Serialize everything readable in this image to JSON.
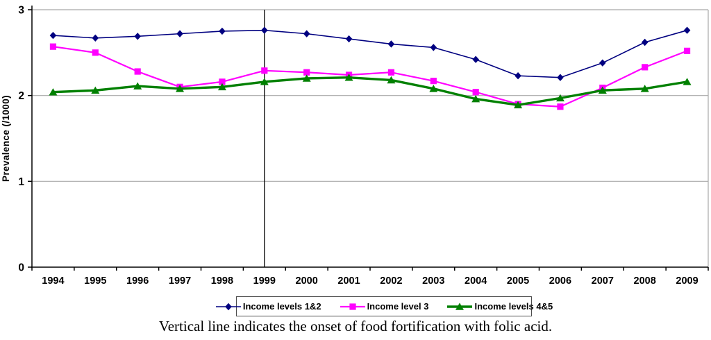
{
  "chart_data": {
    "type": "line",
    "categories": [
      "1994",
      "1995",
      "1996",
      "1997",
      "1998",
      "1999",
      "2000",
      "2001",
      "2002",
      "2003",
      "2004",
      "2005",
      "2006",
      "2007",
      "2008",
      "2009"
    ],
    "series": [
      {
        "name": "Income levels 1&2",
        "marker": "diamond",
        "color": "#000080",
        "values": [
          2.7,
          2.67,
          2.69,
          2.72,
          2.75,
          2.76,
          2.72,
          2.66,
          2.6,
          2.56,
          2.42,
          2.23,
          2.21,
          2.38,
          2.62,
          2.76
        ]
      },
      {
        "name": "Income level 3",
        "marker": "square",
        "color": "#FF00FF",
        "values": [
          2.57,
          2.5,
          2.28,
          2.1,
          2.16,
          2.29,
          2.27,
          2.24,
          2.27,
          2.17,
          2.04,
          1.9,
          1.87,
          2.09,
          2.33,
          2.52
        ]
      },
      {
        "name": "Income levels 4&5",
        "marker": "triangle",
        "color": "#008000",
        "values": [
          2.04,
          2.06,
          2.11,
          2.08,
          2.1,
          2.16,
          2.2,
          2.21,
          2.18,
          2.08,
          1.96,
          1.89,
          1.97,
          2.06,
          2.08,
          2.16
        ]
      }
    ],
    "ylabel": "Prevalence (/1000)",
    "xlabel": "",
    "ylim": [
      0,
      3
    ],
    "yticks": [
      0,
      1,
      2,
      3
    ],
    "grid": true,
    "legend_position": "bottom",
    "annotation": {
      "vertical_line_at": "1999"
    }
  },
  "caption": "Vertical line indicates the onset of food fortification with folic acid.",
  "colors": {
    "axis": "#000000",
    "gridline": "#a8a8a8",
    "plot_right_border": "#a8a8a8",
    "vertical_line": "#000000",
    "background": "#ffffff",
    "legend_border": "#4d4d4d",
    "tick_label": "#000000"
  }
}
